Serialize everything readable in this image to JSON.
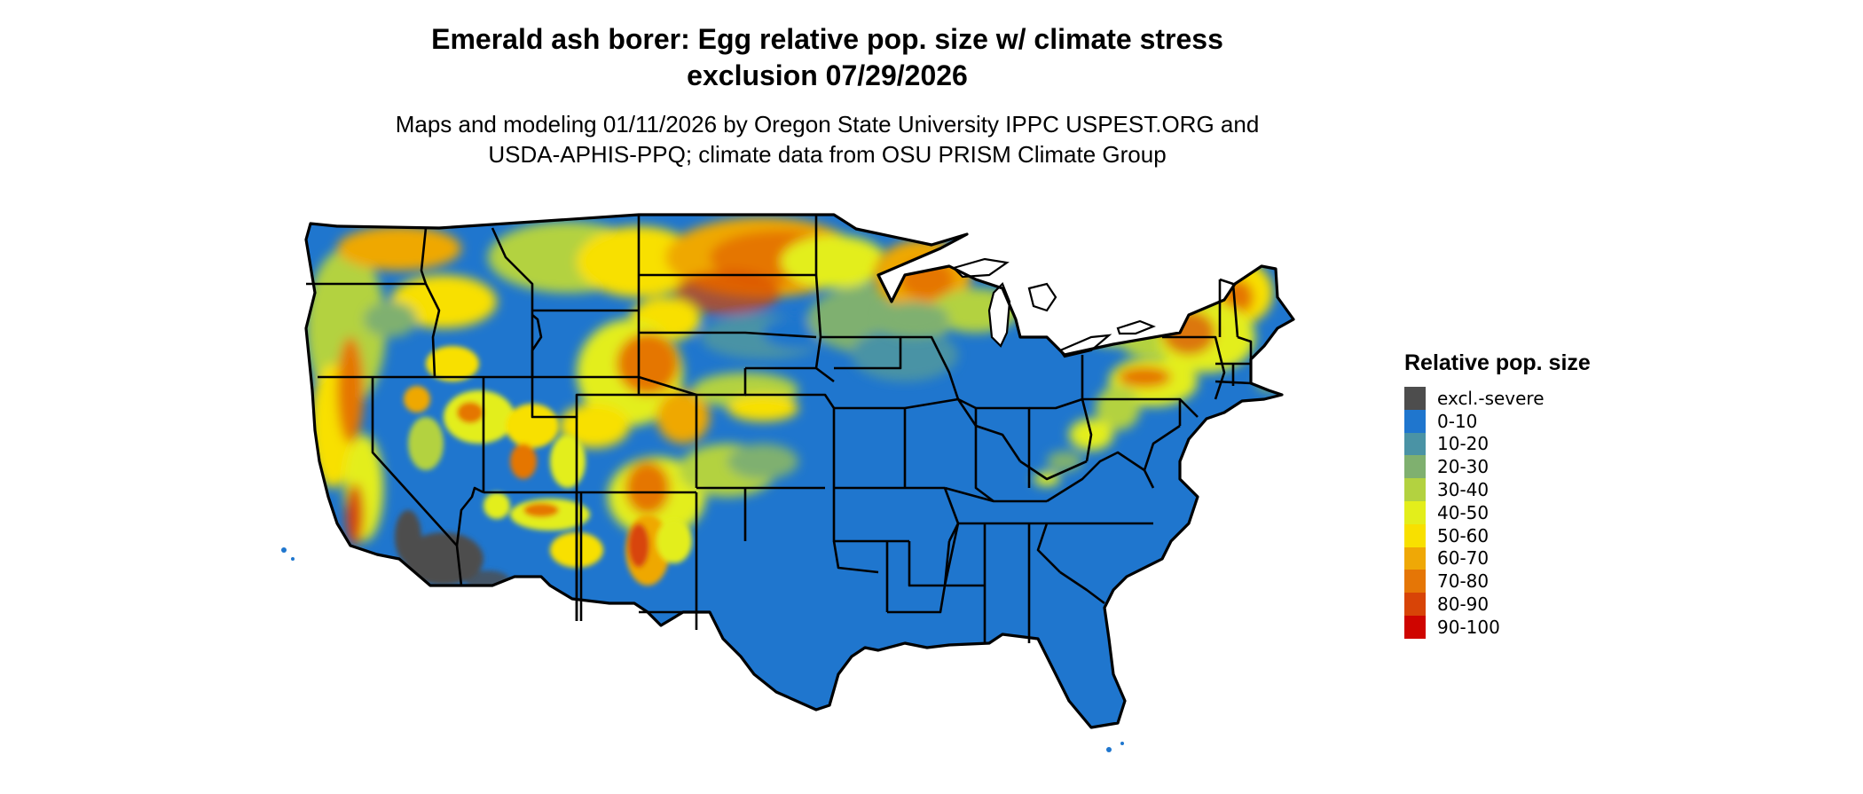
{
  "title": {
    "line1": "Emerald ash borer: Egg relative pop. size w/ climate stress",
    "line2": "exclusion 07/29/2026"
  },
  "subtitle": {
    "line1": "Maps and modeling 01/11/2026 by Oregon State University IPPC USPEST.ORG and",
    "line2": "USDA-APHIS-PPQ; climate data from OSU PRISM Climate Group"
  },
  "legend": {
    "title": "Relative pop. size",
    "items": [
      {
        "label": "excl.-severe",
        "color": "#4d4d4d"
      },
      {
        "label": "0-10",
        "color": "#1f76ce"
      },
      {
        "label": "10-20",
        "color": "#4a93a5"
      },
      {
        "label": "20-30",
        "color": "#7fb06f"
      },
      {
        "label": "30-40",
        "color": "#b3d240"
      },
      {
        "label": "40-50",
        "color": "#e3ee1b"
      },
      {
        "label": "50-60",
        "color": "#f8e000"
      },
      {
        "label": "60-70",
        "color": "#efa806"
      },
      {
        "label": "70-80",
        "color": "#e57606"
      },
      {
        "label": "80-90",
        "color": "#d84407"
      },
      {
        "label": "90-100",
        "color": "#cf0500"
      }
    ]
  },
  "map": {
    "region": "contiguous-united-states",
    "ocean_color": "#ffffff",
    "border_color": "#000000"
  }
}
